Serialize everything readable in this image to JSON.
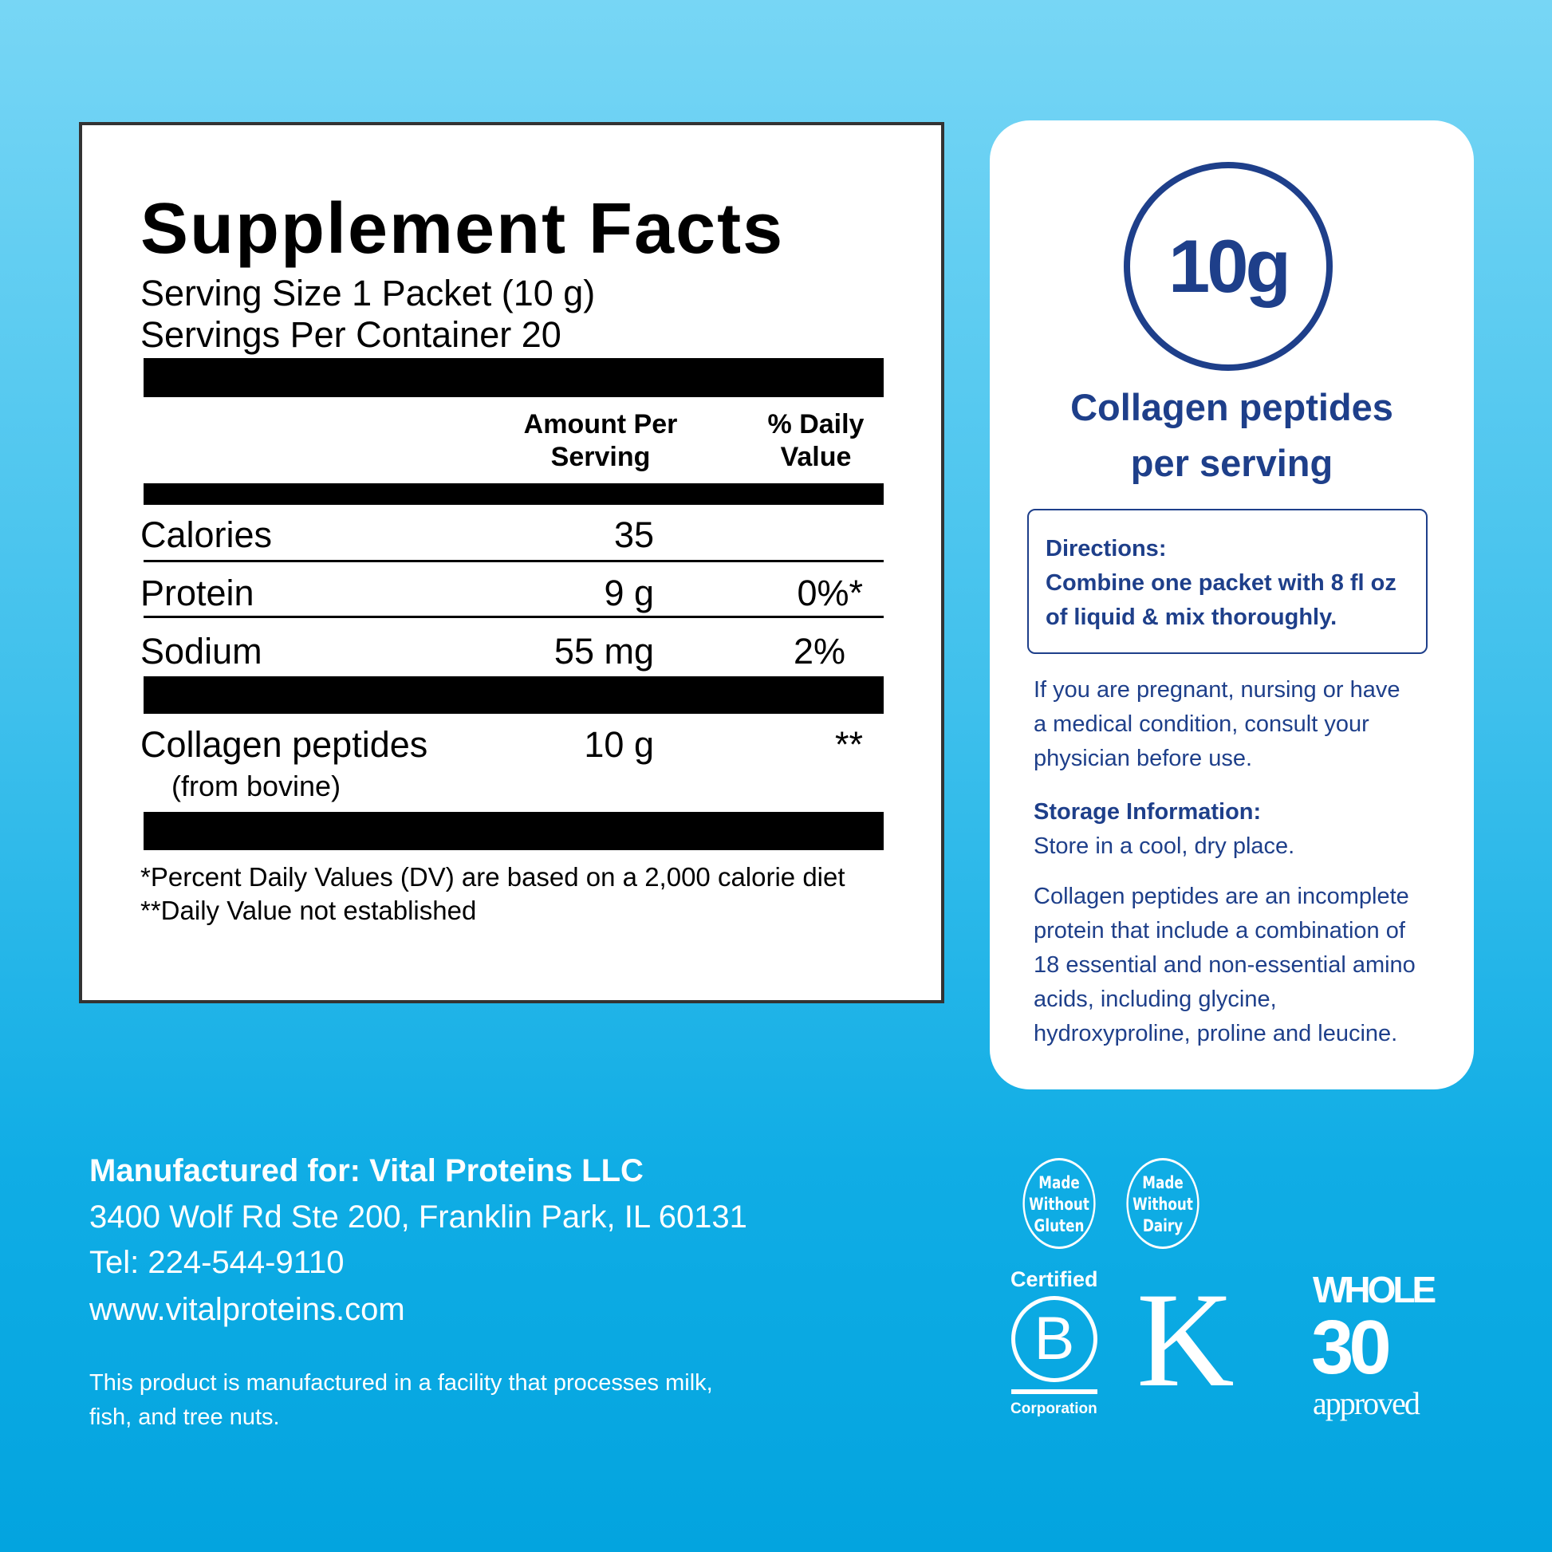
{
  "facts": {
    "title": "Supplement Facts",
    "serving_size": "Serving Size 1 Packet (10 g)",
    "servings_per_container": "Servings Per Container 20",
    "header_amount": [
      "Amount Per",
      "Serving"
    ],
    "header_dv": [
      "% Daily",
      "Value"
    ],
    "rows": [
      {
        "name": "Calories",
        "amount": "35",
        "dv": ""
      },
      {
        "name": "Protein",
        "amount": "9 g",
        "dv": "0%*"
      },
      {
        "name": "Sodium",
        "amount": "55 mg",
        "dv": "2%"
      }
    ],
    "collagen": {
      "name": "Collagen peptides",
      "sub": "(from bovine)",
      "amount": "10 g",
      "dv": "**"
    },
    "footnotes": [
      "*Percent Daily Values (DV) are based on a 2,000 calorie diet",
      "**Daily Value not established"
    ]
  },
  "card": {
    "badge": "10g",
    "headline": [
      "Collagen peptides",
      "per serving"
    ],
    "directions_title": "Directions:",
    "directions": [
      "Combine one packet with 8 fl oz",
      "of liquid & mix thoroughly."
    ],
    "warning": [
      "If you are pregnant, nursing or have",
      "a medical condition, consult your",
      "physician before use."
    ],
    "storage_title": "Storage Information:",
    "storage": "Store in a cool, dry place.",
    "info": [
      "Collagen peptides are an incomplete",
      "protein that include a combination of",
      "18 essential and non-essential amino",
      "acids, including glycine,",
      "hydroxyproline, proline and leucine."
    ]
  },
  "manufacturer": {
    "line1": "Manufactured for: Vital Proteins LLC",
    "address": "3400 Wolf Rd Ste 200, Franklin Park, IL 60131",
    "tel": "Tel: 224-544-9110",
    "web": "www.vitalproteins.com",
    "disclaimer": [
      "This product is manufactured in a facility that processes milk,",
      "fish, and tree nuts."
    ]
  },
  "badges": {
    "gluten": [
      "Made",
      "Without",
      "Gluten"
    ],
    "dairy": [
      "Made",
      "Without",
      "Dairy"
    ],
    "bcorp_top": "Certified",
    "bcorp_letter": "B",
    "bcorp_bottom": "Corporation",
    "kosher": "K",
    "whole30": [
      "WHOLE",
      "30",
      "approved"
    ]
  },
  "colors": {
    "navy": "#1e3f8a",
    "bg_top": "#77d6f5",
    "bg_bottom": "#03a4df"
  }
}
